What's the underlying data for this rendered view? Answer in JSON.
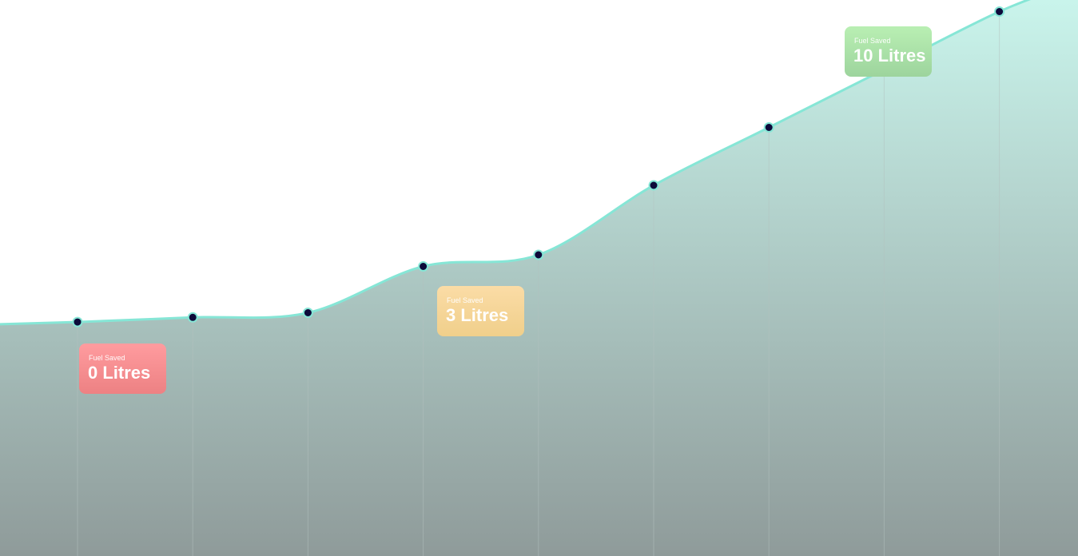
{
  "chart_data": {
    "type": "area",
    "x": [
      1,
      2,
      3,
      4,
      5,
      6,
      7,
      8,
      9
    ],
    "series": [
      {
        "values": [
          0.1,
          0.3,
          0.5,
          2.5,
          3.0,
          6.0,
          8.5,
          11.0,
          13.5
        ]
      }
    ],
    "ylim": [
      -10,
      14
    ],
    "grid": {
      "vertical": true,
      "horizontal": false
    },
    "colors": {
      "line": "#86e6d6",
      "area_top": "#cbf7ee",
      "area_bottom": "#8f9b9a",
      "marker": "#0d0a3a",
      "grid": "#b3c2c0"
    },
    "annotations": [
      {
        "label": "Fuel Saved",
        "value": "0 Litres",
        "color": "#f58b8d"
      },
      {
        "label": "Fuel Saved",
        "value": "3 Litres",
        "color": "#f5d79a"
      },
      {
        "label": "Fuel Saved",
        "value": "10 Litres",
        "color": "#abe1a8"
      }
    ]
  }
}
